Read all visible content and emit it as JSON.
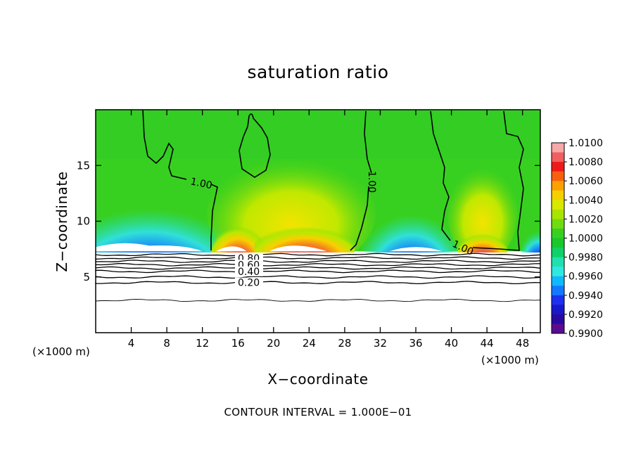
{
  "chart_data": {
    "type": "heatmap",
    "title": "saturation ratio",
    "xlabel": "X−coordinate",
    "ylabel": "Z−coordinate",
    "x_unit": "(×1000 m)",
    "note": "CONTOUR INTERVAL = 1.000E−01",
    "xlim": [
      0,
      50
    ],
    "ylim": [
      0,
      20
    ],
    "x_ticks": [
      4,
      8,
      12,
      16,
      20,
      24,
      28,
      32,
      36,
      40,
      44,
      48
    ],
    "y_ticks": [
      5,
      10,
      15
    ],
    "colorbar": {
      "min": 0.99,
      "max": 1.01,
      "labels": [
        "1.0100",
        "1.0080",
        "1.0060",
        "1.0040",
        "1.0020",
        "1.0000",
        "0.9980",
        "0.9960",
        "0.9940",
        "0.9920",
        "0.9900"
      ],
      "colors": [
        "#f7a8a8",
        "#f06060",
        "#ee1a1a",
        "#f86010",
        "#fca000",
        "#f4d000",
        "#d8e800",
        "#a8e400",
        "#70dc10",
        "#38d020",
        "#18c82c",
        "#10d068",
        "#20e0b0",
        "#30e8e0",
        "#10b8ff",
        "#1478ff",
        "#1c30f0",
        "#1818c8",
        "#280aa0",
        "#5a0c90"
      ]
    },
    "contour_labels_upper": [
      "1.00",
      "1.00",
      "1.00"
    ],
    "contour_labels_lower": [
      "0.80",
      "0.60",
      "0.40",
      "0.20"
    ],
    "lower_contour_levels": [
      0.9,
      0.8,
      0.7,
      0.6,
      0.5,
      0.4,
      0.3,
      0.2,
      0.1
    ],
    "lower_contour_heights": [
      7.0,
      6.7,
      6.4,
      6.1,
      5.8,
      5.5,
      5.0,
      4.5,
      2.9
    ],
    "cloud_base_height": 7.3,
    "colored_region": {
      "z_min": 7.3,
      "z_max": 20
    }
  }
}
